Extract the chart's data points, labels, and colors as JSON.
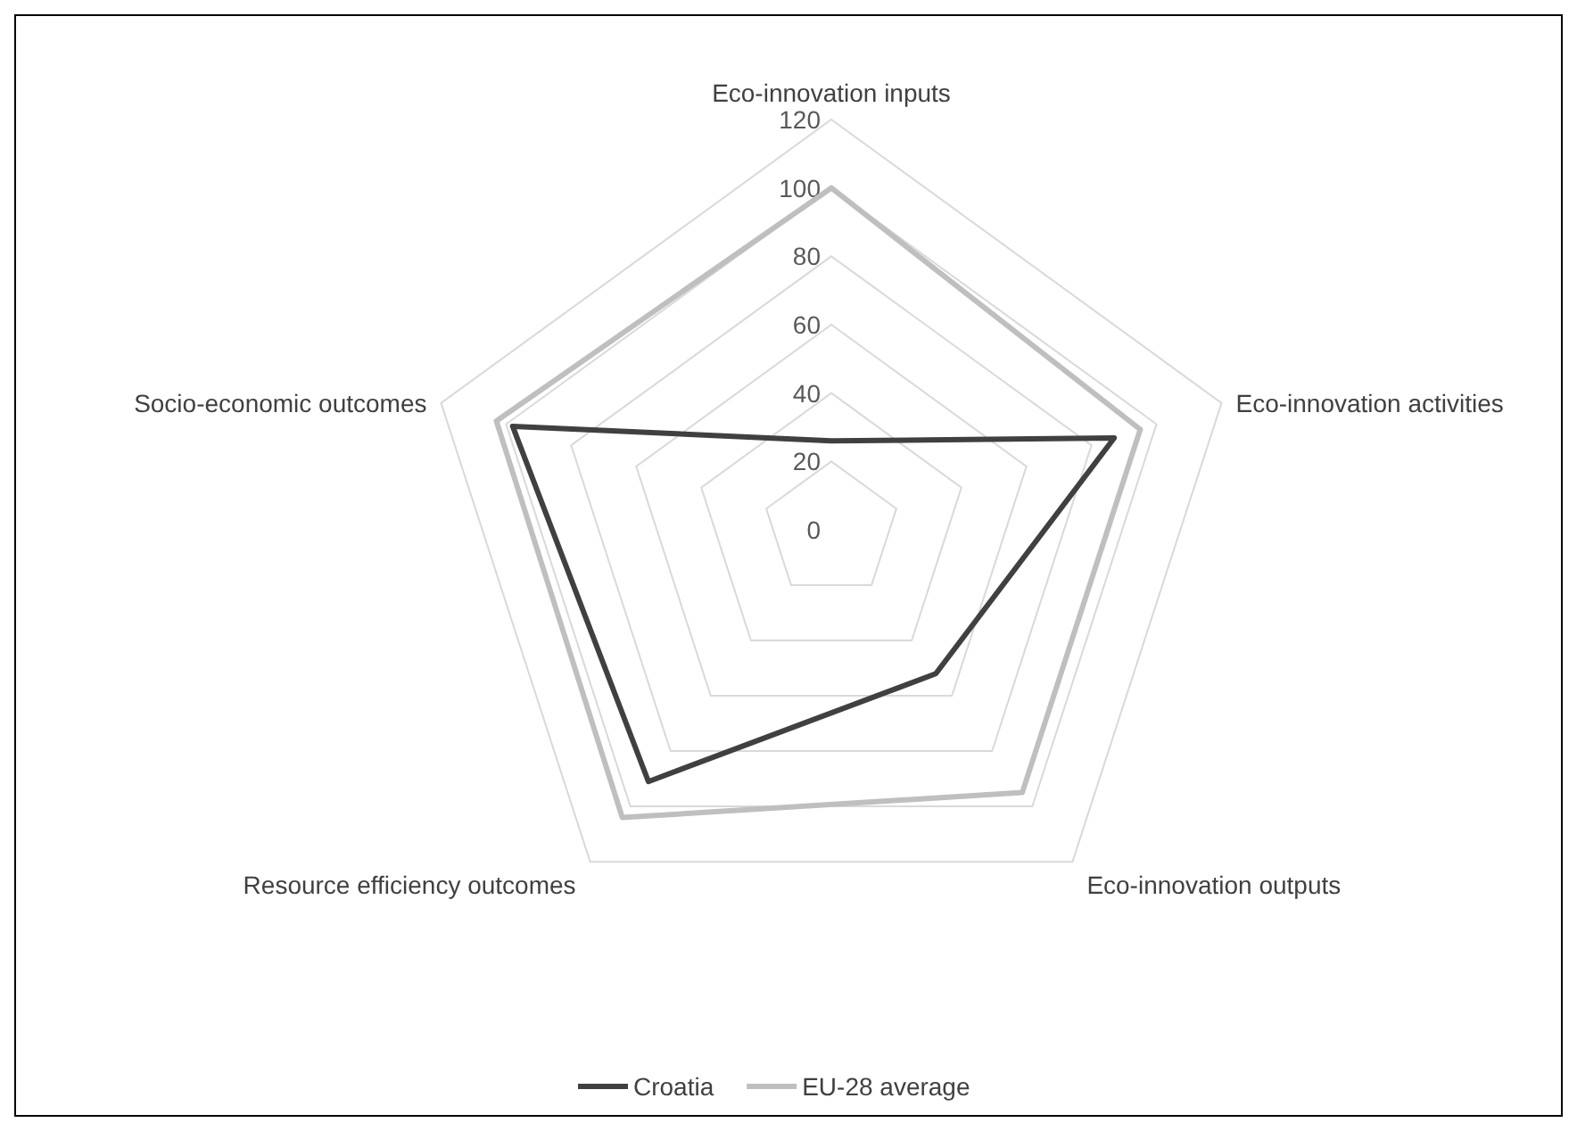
{
  "chart_data": {
    "type": "radar",
    "categories": [
      "Eco-innovation inputs",
      "Eco-innovation activities",
      "Eco-innovation outputs",
      "Resource efficiency outcomes",
      "Socio-economic outcomes"
    ],
    "series": [
      {
        "name": "Croatia",
        "color": "#404040",
        "values": [
          26,
          87,
          52,
          91,
          98
        ]
      },
      {
        "name": "EU-28 average",
        "color": "#bfbfbf",
        "values": [
          100,
          95,
          95,
          104,
          103
        ]
      }
    ],
    "ylim": [
      0,
      120
    ],
    "yticks": [
      0,
      20,
      40,
      60,
      80,
      100,
      120
    ],
    "grid": true,
    "legend": "bottom",
    "marker": "none"
  }
}
